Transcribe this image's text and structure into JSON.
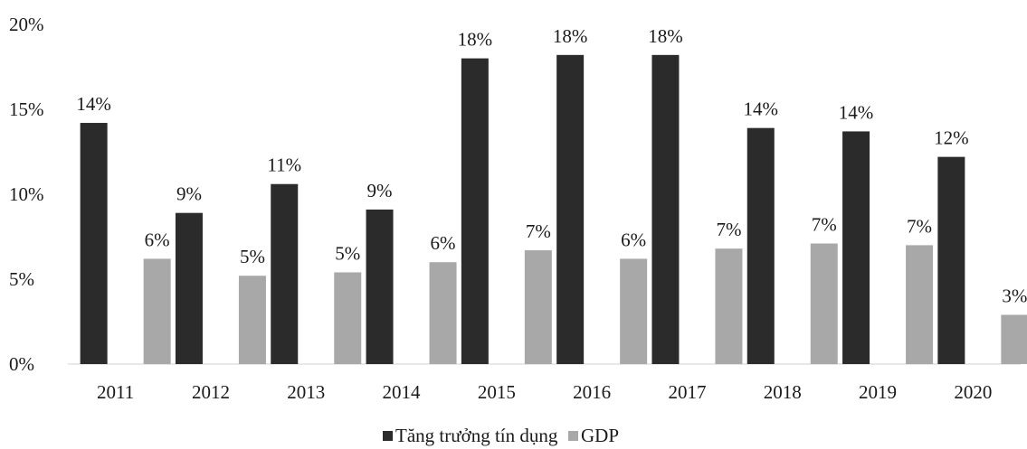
{
  "chart_data": {
    "type": "bar",
    "title": "",
    "xlabel": "",
    "ylabel": "",
    "categories": [
      "2011",
      "2012",
      "2013",
      "2014",
      "2015",
      "2016",
      "2017",
      "2018",
      "2019",
      "2020"
    ],
    "series": [
      {
        "name": "Tăng trưởng tín dụng",
        "color": "#2b2b2b",
        "values": [
          14.2,
          8.9,
          10.6,
          9.1,
          18.0,
          18.2,
          18.2,
          13.9,
          13.7,
          12.2
        ],
        "labels": [
          "14%",
          "9%",
          "11%",
          "9%",
          "18%",
          "18%",
          "18%",
          "14%",
          "14%",
          "12%"
        ]
      },
      {
        "name": "GDP",
        "color": "#a8a8a8",
        "values": [
          6.2,
          5.2,
          5.4,
          6.0,
          6.7,
          6.2,
          6.8,
          7.1,
          7.0,
          2.9
        ],
        "labels": [
          "6%",
          "5%",
          "5%",
          "6%",
          "7%",
          "6%",
          "7%",
          "7%",
          "7%",
          "3%"
        ]
      }
    ],
    "ylim": [
      0,
      20
    ],
    "yticks": [
      "0%",
      "5%",
      "10%",
      "15%",
      "20%"
    ],
    "ytick_values": [
      0,
      5,
      10,
      15,
      20
    ],
    "grid": false,
    "legend_position": "bottom"
  }
}
